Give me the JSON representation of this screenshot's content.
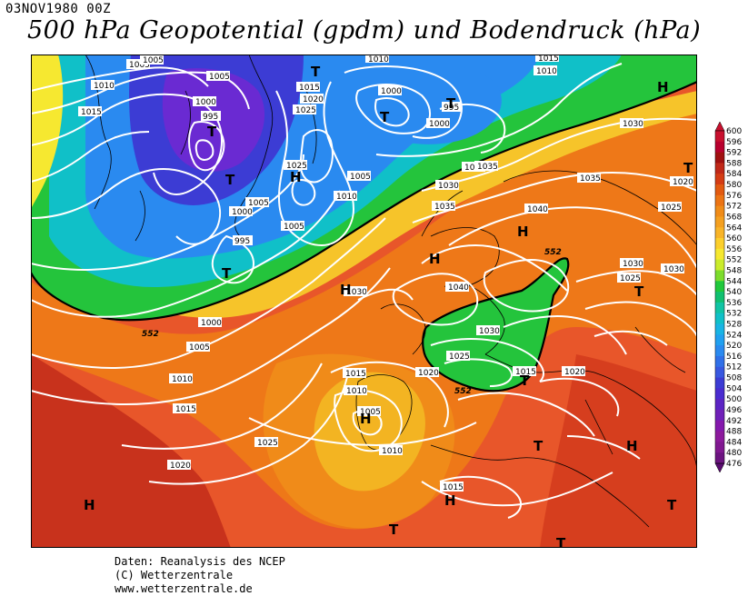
{
  "header": {
    "date": "03NOV1980 00Z",
    "title": "500 hPa Geopotential (gpdm) und Bodendruck (hPa)"
  },
  "footer": {
    "line1": "Daten: Reanalysis des NCEP",
    "line2": "(C) Wetterzentrale",
    "line3": "www.wetterzentrale.de"
  },
  "legend": {
    "levels": [
      "600",
      "596",
      "592",
      "588",
      "584",
      "580",
      "576",
      "572",
      "568",
      "564",
      "560",
      "556",
      "552",
      "548",
      "544",
      "540",
      "536",
      "532",
      "528",
      "524",
      "520",
      "516",
      "512",
      "508",
      "504",
      "500",
      "496",
      "492",
      "488",
      "484",
      "480",
      "476"
    ],
    "colors": [
      "#c8102e",
      "#b8002e",
      "#a01010",
      "#c02818",
      "#d43c14",
      "#e25a10",
      "#ec7414",
      "#f08c18",
      "#f4a020",
      "#f8b428",
      "#fccf2c",
      "#f6e830",
      "#caec2c",
      "#7cdc2c",
      "#20c83c",
      "#10c070",
      "#10c4a4",
      "#10c0c8",
      "#18b4e4",
      "#20a0f0",
      "#2a8af0",
      "#3070e8",
      "#3858e0",
      "#3c3cd4",
      "#4a2cd0",
      "#5c24c4",
      "#7020b8",
      "#8418ac",
      "#8c1a9c",
      "#801890",
      "#6c1480",
      "#5a0c70"
    ]
  },
  "map": {
    "colors": {
      "ocean_background": "#e8562a",
      "deep_low": "#6a2ad2",
      "land_line": "#000000",
      "isobar": "#ffffff",
      "contour_552": "#000000"
    },
    "isobar_labels": [
      "1005",
      "1005",
      "1010",
      "1015",
      "1000",
      "995",
      "1015",
      "1020",
      "1025",
      "1025",
      "1000",
      "995",
      "1000",
      "1005",
      "1010",
      "1000",
      "995",
      "1005",
      "1000",
      "1005",
      "1010",
      "1015",
      "1020",
      "1025",
      "1005",
      "1010",
      "1015",
      "1020",
      "1030",
      "1025",
      "1035",
      "1040",
      "1040",
      "1030",
      "1030",
      "1025",
      "1030",
      "1035",
      "1030",
      "1025",
      "1020",
      "1015",
      "1015",
      "1010",
      "1005",
      "1010",
      "1020",
      "1015",
      "1025",
      "1005",
      "1010",
      "1030",
      "1035",
      "1020",
      "1025"
    ],
    "contour_labels": [
      "552",
      "552",
      "552"
    ],
    "pressure_centers": [
      {
        "label": "T"
      },
      {
        "label": "T"
      },
      {
        "label": "T"
      },
      {
        "label": "T"
      },
      {
        "label": "T"
      },
      {
        "label": "T"
      },
      {
        "label": "H"
      },
      {
        "label": "H"
      },
      {
        "label": "H"
      },
      {
        "label": "H"
      },
      {
        "label": "H"
      },
      {
        "label": "T"
      },
      {
        "label": "T"
      },
      {
        "label": "H"
      },
      {
        "label": "H"
      },
      {
        "label": "T"
      },
      {
        "label": "T"
      },
      {
        "label": "H"
      },
      {
        "label": "H"
      },
      {
        "label": "T"
      },
      {
        "label": "T"
      },
      {
        "label": "T"
      }
    ]
  }
}
